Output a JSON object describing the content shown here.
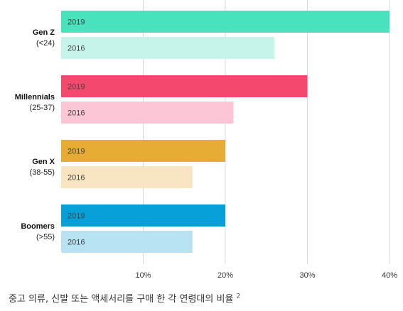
{
  "chart_data": {
    "type": "bar",
    "orientation": "horizontal",
    "groups": [
      {
        "name": "Gen Z",
        "sub": "(<24)",
        "color_2019": "#48e2bc",
        "color_2016": "#c6f4ea",
        "values": [
          {
            "label": "2019",
            "value": 40
          },
          {
            "label": "2016",
            "value": 26
          }
        ]
      },
      {
        "name": "Millennials",
        "sub": "(25-37)",
        "color_2019": "#f4496e",
        "color_2016": "#fcc6d4",
        "values": [
          {
            "label": "2019",
            "value": 30
          },
          {
            "label": "2016",
            "value": 21
          }
        ]
      },
      {
        "name": "Gen X",
        "sub": "(38-55)",
        "color_2019": "#e5ab32",
        "color_2016": "#f8e4c1",
        "values": [
          {
            "label": "2019",
            "value": 20
          },
          {
            "label": "2016",
            "value": 16
          }
        ]
      },
      {
        "name": "Boomers",
        "sub": "(>55)",
        "color_2019": "#079fd7",
        "color_2016": "#b6e2f2",
        "values": [
          {
            "label": "2019",
            "value": 20
          },
          {
            "label": "2016",
            "value": 16
          }
        ]
      }
    ],
    "x_ticks": [
      10,
      20,
      30,
      40
    ],
    "tick_suffix": "%",
    "xlim": [
      0,
      40
    ],
    "grid": "vertical"
  },
  "caption": {
    "text": "중고 의류, 신발 또는 액세서리를 구매 한 각 연령대의 비율",
    "footnote": "2"
  }
}
